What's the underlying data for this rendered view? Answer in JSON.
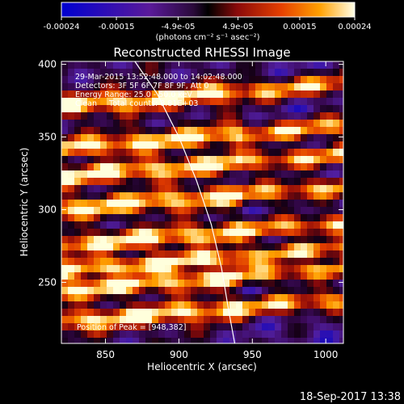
{
  "colorbar": {
    "ticks": [
      "-0.00024",
      "-0.00015",
      "-4.9e-05",
      "4.9e-05",
      "0.00015",
      "0.00024"
    ],
    "unit_label": "(photons cm⁻² s⁻¹ asec⁻²)",
    "range": [
      -0.00024,
      0.00024
    ]
  },
  "chart_data": {
    "type": "heatmap",
    "title": "Reconstructed RHESSI Image",
    "xlabel": "Heliocentric X (arcsec)",
    "ylabel": "Heliocentric Y (arcsec)",
    "xlim": [
      820,
      1012
    ],
    "ylim": [
      208,
      402
    ],
    "x_ticks": [
      850,
      900,
      950,
      1000
    ],
    "y_ticks": [
      250,
      300,
      350,
      400
    ],
    "x_tick_labels": [
      "850",
      "900",
      "950",
      "1000"
    ],
    "y_tick_labels": [
      "250",
      "300",
      "350",
      "400"
    ],
    "info_lines": [
      "29-Mar-2015 13:52:48.000 to 14:02:48.000",
      "Detectors: 3F 5F 6F 7F 8F 9F, Att 0",
      "Energy Range: 25.0 - 50.0 keV",
      "Clean     Total counts: 8.81E+03"
    ],
    "peak_text": "Position of Peak = [948,382]",
    "limb_curve": [
      [
        870,
        402
      ],
      [
        885,
        380
      ],
      [
        900,
        350
      ],
      [
        912,
        320
      ],
      [
        922,
        290
      ],
      [
        929,
        260
      ],
      [
        934,
        230
      ],
      [
        938,
        208
      ]
    ]
  },
  "footer": {
    "timestamp": "18-Sep-2017 13:38"
  },
  "colors": {
    "background": "#000000",
    "text": "#ffffff"
  }
}
